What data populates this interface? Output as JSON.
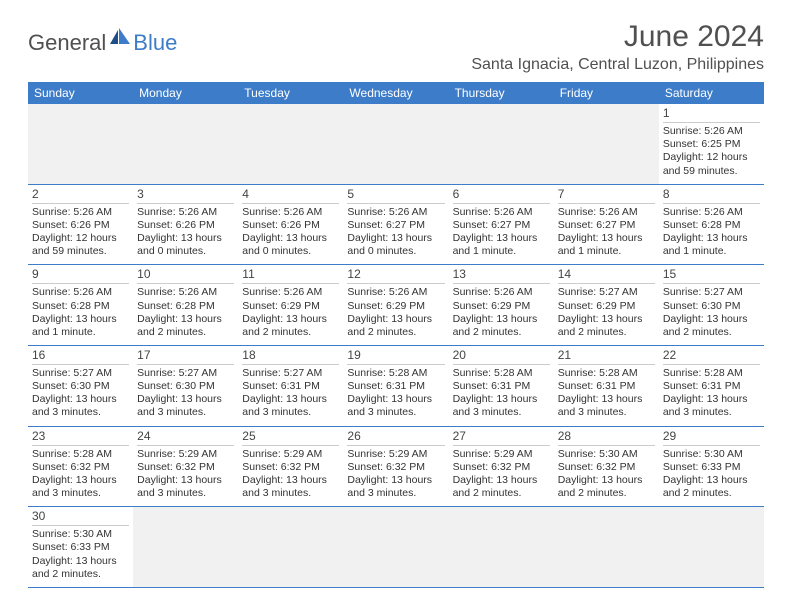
{
  "logo": {
    "text1": "General",
    "text2": "Blue"
  },
  "title": "June 2024",
  "location": "Santa Ignacia, Central Luzon, Philippines",
  "colors": {
    "brand_blue": "#3d7cc9",
    "header_gray": "#505050",
    "blank_bg": "#f1f1f1"
  },
  "day_headers": [
    "Sunday",
    "Monday",
    "Tuesday",
    "Wednesday",
    "Thursday",
    "Friday",
    "Saturday"
  ],
  "weeks": [
    [
      null,
      null,
      null,
      null,
      null,
      null,
      {
        "n": "1",
        "sunrise": "Sunrise: 5:26 AM",
        "sunset": "Sunset: 6:25 PM",
        "daylight": "Daylight: 12 hours and 59 minutes."
      }
    ],
    [
      {
        "n": "2",
        "sunrise": "Sunrise: 5:26 AM",
        "sunset": "Sunset: 6:26 PM",
        "daylight": "Daylight: 12 hours and 59 minutes."
      },
      {
        "n": "3",
        "sunrise": "Sunrise: 5:26 AM",
        "sunset": "Sunset: 6:26 PM",
        "daylight": "Daylight: 13 hours and 0 minutes."
      },
      {
        "n": "4",
        "sunrise": "Sunrise: 5:26 AM",
        "sunset": "Sunset: 6:26 PM",
        "daylight": "Daylight: 13 hours and 0 minutes."
      },
      {
        "n": "5",
        "sunrise": "Sunrise: 5:26 AM",
        "sunset": "Sunset: 6:27 PM",
        "daylight": "Daylight: 13 hours and 0 minutes."
      },
      {
        "n": "6",
        "sunrise": "Sunrise: 5:26 AM",
        "sunset": "Sunset: 6:27 PM",
        "daylight": "Daylight: 13 hours and 1 minute."
      },
      {
        "n": "7",
        "sunrise": "Sunrise: 5:26 AM",
        "sunset": "Sunset: 6:27 PM",
        "daylight": "Daylight: 13 hours and 1 minute."
      },
      {
        "n": "8",
        "sunrise": "Sunrise: 5:26 AM",
        "sunset": "Sunset: 6:28 PM",
        "daylight": "Daylight: 13 hours and 1 minute."
      }
    ],
    [
      {
        "n": "9",
        "sunrise": "Sunrise: 5:26 AM",
        "sunset": "Sunset: 6:28 PM",
        "daylight": "Daylight: 13 hours and 1 minute."
      },
      {
        "n": "10",
        "sunrise": "Sunrise: 5:26 AM",
        "sunset": "Sunset: 6:28 PM",
        "daylight": "Daylight: 13 hours and 2 minutes."
      },
      {
        "n": "11",
        "sunrise": "Sunrise: 5:26 AM",
        "sunset": "Sunset: 6:29 PM",
        "daylight": "Daylight: 13 hours and 2 minutes."
      },
      {
        "n": "12",
        "sunrise": "Sunrise: 5:26 AM",
        "sunset": "Sunset: 6:29 PM",
        "daylight": "Daylight: 13 hours and 2 minutes."
      },
      {
        "n": "13",
        "sunrise": "Sunrise: 5:26 AM",
        "sunset": "Sunset: 6:29 PM",
        "daylight": "Daylight: 13 hours and 2 minutes."
      },
      {
        "n": "14",
        "sunrise": "Sunrise: 5:27 AM",
        "sunset": "Sunset: 6:29 PM",
        "daylight": "Daylight: 13 hours and 2 minutes."
      },
      {
        "n": "15",
        "sunrise": "Sunrise: 5:27 AM",
        "sunset": "Sunset: 6:30 PM",
        "daylight": "Daylight: 13 hours and 2 minutes."
      }
    ],
    [
      {
        "n": "16",
        "sunrise": "Sunrise: 5:27 AM",
        "sunset": "Sunset: 6:30 PM",
        "daylight": "Daylight: 13 hours and 3 minutes."
      },
      {
        "n": "17",
        "sunrise": "Sunrise: 5:27 AM",
        "sunset": "Sunset: 6:30 PM",
        "daylight": "Daylight: 13 hours and 3 minutes."
      },
      {
        "n": "18",
        "sunrise": "Sunrise: 5:27 AM",
        "sunset": "Sunset: 6:31 PM",
        "daylight": "Daylight: 13 hours and 3 minutes."
      },
      {
        "n": "19",
        "sunrise": "Sunrise: 5:28 AM",
        "sunset": "Sunset: 6:31 PM",
        "daylight": "Daylight: 13 hours and 3 minutes."
      },
      {
        "n": "20",
        "sunrise": "Sunrise: 5:28 AM",
        "sunset": "Sunset: 6:31 PM",
        "daylight": "Daylight: 13 hours and 3 minutes."
      },
      {
        "n": "21",
        "sunrise": "Sunrise: 5:28 AM",
        "sunset": "Sunset: 6:31 PM",
        "daylight": "Daylight: 13 hours and 3 minutes."
      },
      {
        "n": "22",
        "sunrise": "Sunrise: 5:28 AM",
        "sunset": "Sunset: 6:31 PM",
        "daylight": "Daylight: 13 hours and 3 minutes."
      }
    ],
    [
      {
        "n": "23",
        "sunrise": "Sunrise: 5:28 AM",
        "sunset": "Sunset: 6:32 PM",
        "daylight": "Daylight: 13 hours and 3 minutes."
      },
      {
        "n": "24",
        "sunrise": "Sunrise: 5:29 AM",
        "sunset": "Sunset: 6:32 PM",
        "daylight": "Daylight: 13 hours and 3 minutes."
      },
      {
        "n": "25",
        "sunrise": "Sunrise: 5:29 AM",
        "sunset": "Sunset: 6:32 PM",
        "daylight": "Daylight: 13 hours and 3 minutes."
      },
      {
        "n": "26",
        "sunrise": "Sunrise: 5:29 AM",
        "sunset": "Sunset: 6:32 PM",
        "daylight": "Daylight: 13 hours and 3 minutes."
      },
      {
        "n": "27",
        "sunrise": "Sunrise: 5:29 AM",
        "sunset": "Sunset: 6:32 PM",
        "daylight": "Daylight: 13 hours and 2 minutes."
      },
      {
        "n": "28",
        "sunrise": "Sunrise: 5:30 AM",
        "sunset": "Sunset: 6:32 PM",
        "daylight": "Daylight: 13 hours and 2 minutes."
      },
      {
        "n": "29",
        "sunrise": "Sunrise: 5:30 AM",
        "sunset": "Sunset: 6:33 PM",
        "daylight": "Daylight: 13 hours and 2 minutes."
      }
    ],
    [
      {
        "n": "30",
        "sunrise": "Sunrise: 5:30 AM",
        "sunset": "Sunset: 6:33 PM",
        "daylight": "Daylight: 13 hours and 2 minutes."
      },
      null,
      null,
      null,
      null,
      null,
      null
    ]
  ]
}
